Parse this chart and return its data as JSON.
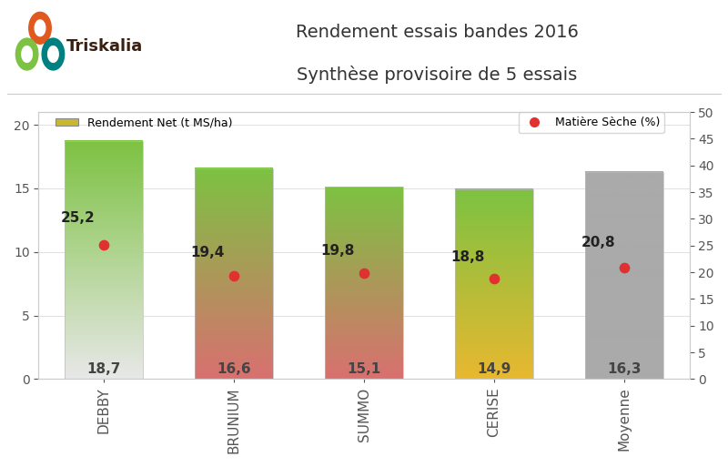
{
  "categories": [
    "DEBBY",
    "BRUNIUM",
    "SUMMO",
    "CERISE",
    "Moyenne"
  ],
  "bar_heights": [
    18.7,
    16.6,
    15.1,
    14.9,
    16.3
  ],
  "ms_values": [
    25.2,
    19.4,
    19.8,
    18.8,
    20.8
  ],
  "bar_gradients": [
    {
      "top": "#7dc242",
      "bottom": "#e8e8e8"
    },
    {
      "top": "#7dc242",
      "bottom": "#d97070"
    },
    {
      "top": "#7dc242",
      "bottom": "#d97070"
    },
    {
      "top": "#7dc242",
      "bottom": "#e8b830"
    },
    {
      "top": "#aaaaaa",
      "bottom": "#aaaaaa"
    }
  ],
  "title_line1": "Rendement essais bandes 2016",
  "title_line2": "Synthèse provisoire de 5 essais",
  "ylim_left": [
    0,
    21
  ],
  "ylim_right": [
    0,
    50
  ],
  "yticks_left": [
    0,
    5,
    10,
    15,
    20
  ],
  "yticks_right": [
    0,
    5,
    10,
    15,
    20,
    25,
    30,
    35,
    40,
    45,
    50
  ],
  "legend_bar_label": "Rendement Net (t MS/ha)",
  "legend_dot_label": "Matière Sèche (%)",
  "dot_color": "#e03030",
  "bar_legend_color": "#c8b830",
  "background_color": "#ffffff",
  "title_color": "#333333",
  "ms_label_color": "#222222",
  "bar_value_color": "#444444"
}
